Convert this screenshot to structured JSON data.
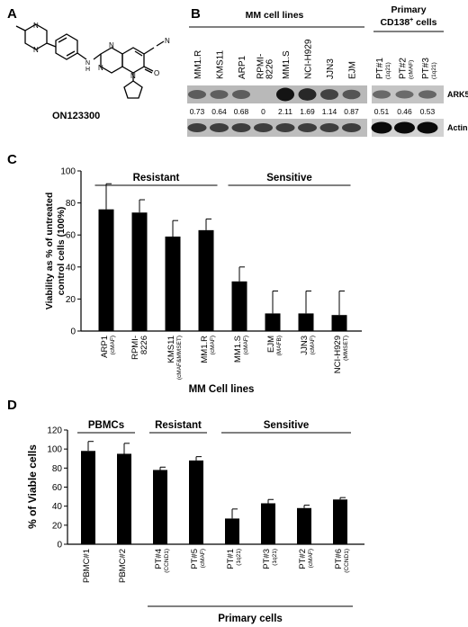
{
  "panel_a": {
    "letter": "A",
    "compound_name": "ON123300"
  },
  "panel_b": {
    "letter": "B",
    "group_mm": "MM cell lines",
    "group_primary_line1": "Primary",
    "group_primary_line2": "CD138",
    "group_primary_sup": "+",
    "group_primary_line2_tail": " cells",
    "lanes_mm": [
      {
        "name": "MM1.R",
        "value": "0.73",
        "band": 0.45
      },
      {
        "name": "KMS11",
        "value": "0.64",
        "band": 0.42
      },
      {
        "name": "ARP1",
        "value": "0.68",
        "band": 0.44
      },
      {
        "name": "RPMI-8226",
        "value": "0",
        "band": 0.0
      },
      {
        "name": "MM1.S",
        "value": "2.11",
        "band": 1.0
      },
      {
        "name": "NCI-H929",
        "value": "1.69",
        "band": 0.85
      },
      {
        "name": "JJN3",
        "value": "1.14",
        "band": 0.65
      },
      {
        "name": "EJM",
        "value": "0.87",
        "band": 0.5
      }
    ],
    "lanes_primary": [
      {
        "name": "PT#1",
        "sub": "(1q21)",
        "value": "0.51",
        "band": 0.35
      },
      {
        "name": "PT#2",
        "sub": "(cMAF)",
        "value": "0.46",
        "band": 0.33
      },
      {
        "name": "PT#3",
        "sub": "(1q21)",
        "value": "0.53",
        "band": 0.37
      }
    ],
    "blot_labels": [
      "ARK5",
      "Actin"
    ]
  },
  "chart_data": [
    {
      "panel": "C",
      "type": "bar",
      "ylabel_line1": "Viability as % of untreated",
      "ylabel_line2": "control cells (100%)",
      "xlabel": "MM Cell lines",
      "ylim": [
        0,
        100
      ],
      "yticks": [
        0,
        20,
        40,
        60,
        80,
        100
      ],
      "groups": [
        {
          "label": "Resistant",
          "from": 0,
          "to": 3
        },
        {
          "label": "Sensitive",
          "from": 4,
          "to": 7
        }
      ],
      "categories": [
        {
          "name": "ARP1",
          "sub": "(cMAF)"
        },
        {
          "name": "RPMI-8226",
          "sub": ""
        },
        {
          "name": "KMS11",
          "sub": "(cMAF&MMSET)"
        },
        {
          "name": "MM1.R",
          "sub": "(cMAF)"
        },
        {
          "name": "MM1.S",
          "sub": "(cMAF)"
        },
        {
          "name": "EJM",
          "sub": "(MAFB)"
        },
        {
          "name": "JJN3",
          "sub": "(cMAF)"
        },
        {
          "name": "NCI-H929",
          "sub": "(MMSET)"
        }
      ],
      "values": [
        76,
        74,
        59,
        63,
        31,
        11,
        11,
        10
      ],
      "errors": [
        16,
        8,
        10,
        7,
        9,
        14,
        14,
        15
      ]
    },
    {
      "panel": "D",
      "type": "bar",
      "ylabel": "% of Viable cells",
      "ylim": [
        0,
        120
      ],
      "yticks": [
        0,
        20,
        40,
        60,
        80,
        100,
        120
      ],
      "groups": [
        {
          "label": "PBMCs",
          "from": 0,
          "to": 1
        },
        {
          "label": "Resistant",
          "from": 2,
          "to": 3
        },
        {
          "label": "Sensitive",
          "from": 4,
          "to": 7
        }
      ],
      "bottom_group": {
        "label": "Primary cells",
        "from": 2,
        "to": 7
      },
      "categories": [
        {
          "name": "PBMC#1",
          "sub": ""
        },
        {
          "name": "PBMC#2",
          "sub": ""
        },
        {
          "name": "PT#4",
          "sub": "(CCND1)"
        },
        {
          "name": "PT#5",
          "sub": "(cMAF)"
        },
        {
          "name": "PT#1",
          "sub": "(1q21)"
        },
        {
          "name": "PT#3",
          "sub": "(1q21)"
        },
        {
          "name": "PT#2",
          "sub": "(cMAF)"
        },
        {
          "name": "PT#6",
          "sub": "(CCND1)"
        }
      ],
      "values": [
        98,
        95,
        78,
        88,
        27,
        43,
        38,
        47
      ],
      "errors": [
        10,
        11,
        3,
        4,
        10,
        4,
        3,
        2
      ]
    }
  ]
}
